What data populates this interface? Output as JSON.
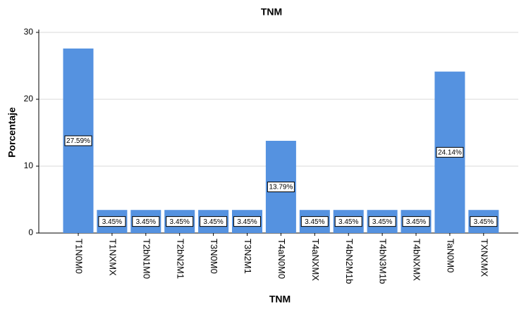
{
  "chart_data": {
    "type": "bar",
    "title": "TNM",
    "x_label": "TNM",
    "y_label": "Porcentaje",
    "categories": [
      "T1N0M0",
      "T1NXMX",
      "T2bN1M0",
      "T2bN2M1",
      "T3N0M0",
      "T3N2M1",
      "T4aN0M0",
      "T4aNXMX",
      "T4bN2M1b",
      "T4bN3M1b",
      "T4bNXMX",
      "TaN0M0",
      "TXNXMX"
    ],
    "values": [
      27.59,
      3.45,
      3.45,
      3.45,
      3.45,
      3.45,
      13.79,
      3.45,
      3.45,
      3.45,
      3.45,
      24.14,
      3.45
    ],
    "value_labels": [
      "27.59%",
      "3.45%",
      "3.45%",
      "3.45%",
      "3.45%",
      "3.45%",
      "13.79%",
      "3.45%",
      "3.45%",
      "3.45%",
      "3.45%",
      "24.14%",
      "3.45%"
    ],
    "color": "#5592e0",
    "ylim": [
      0,
      30
    ],
    "yticks": [
      0,
      10,
      20,
      30
    ],
    "grid": true
  }
}
